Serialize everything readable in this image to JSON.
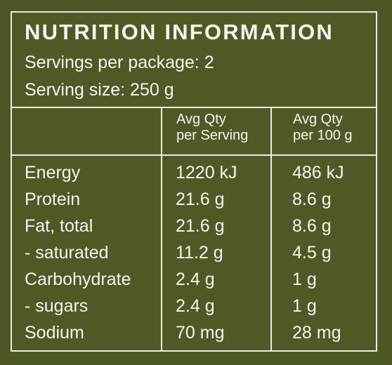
{
  "title": "NUTRITION INFORMATION",
  "servings_per_package": "Servings per package: 2",
  "serving_size": "Serving size: 250 g",
  "columns": {
    "per_serving": [
      "Avg Qty",
      "per Serving"
    ],
    "per_100g": [
      "Avg Qty",
      "per 100 g"
    ]
  },
  "rows": [
    {
      "name": "Energy",
      "per_serving": "1220 kJ",
      "per_100g": "486 kJ"
    },
    {
      "name": "Protein",
      "per_serving": "21.6 g",
      "per_100g": "8.6 g"
    },
    {
      "name": "Fat, total",
      "per_serving": "21.6 g",
      "per_100g": "8.6 g"
    },
    {
      "name": "- saturated",
      "per_serving": "11.2 g",
      "per_100g": "4.5 g"
    },
    {
      "name": "Carbohydrate",
      "per_serving": "2.4 g",
      "per_100g": "1 g"
    },
    {
      "name": "- sugars",
      "per_serving": "2.4 g",
      "per_100g": "1 g"
    },
    {
      "name": "Sodium",
      "per_serving": "70 mg",
      "per_100g": "28 mg"
    }
  ],
  "colors": {
    "background": "#4b5825",
    "text": "#f4f4ee",
    "border": "#ebebe2"
  }
}
